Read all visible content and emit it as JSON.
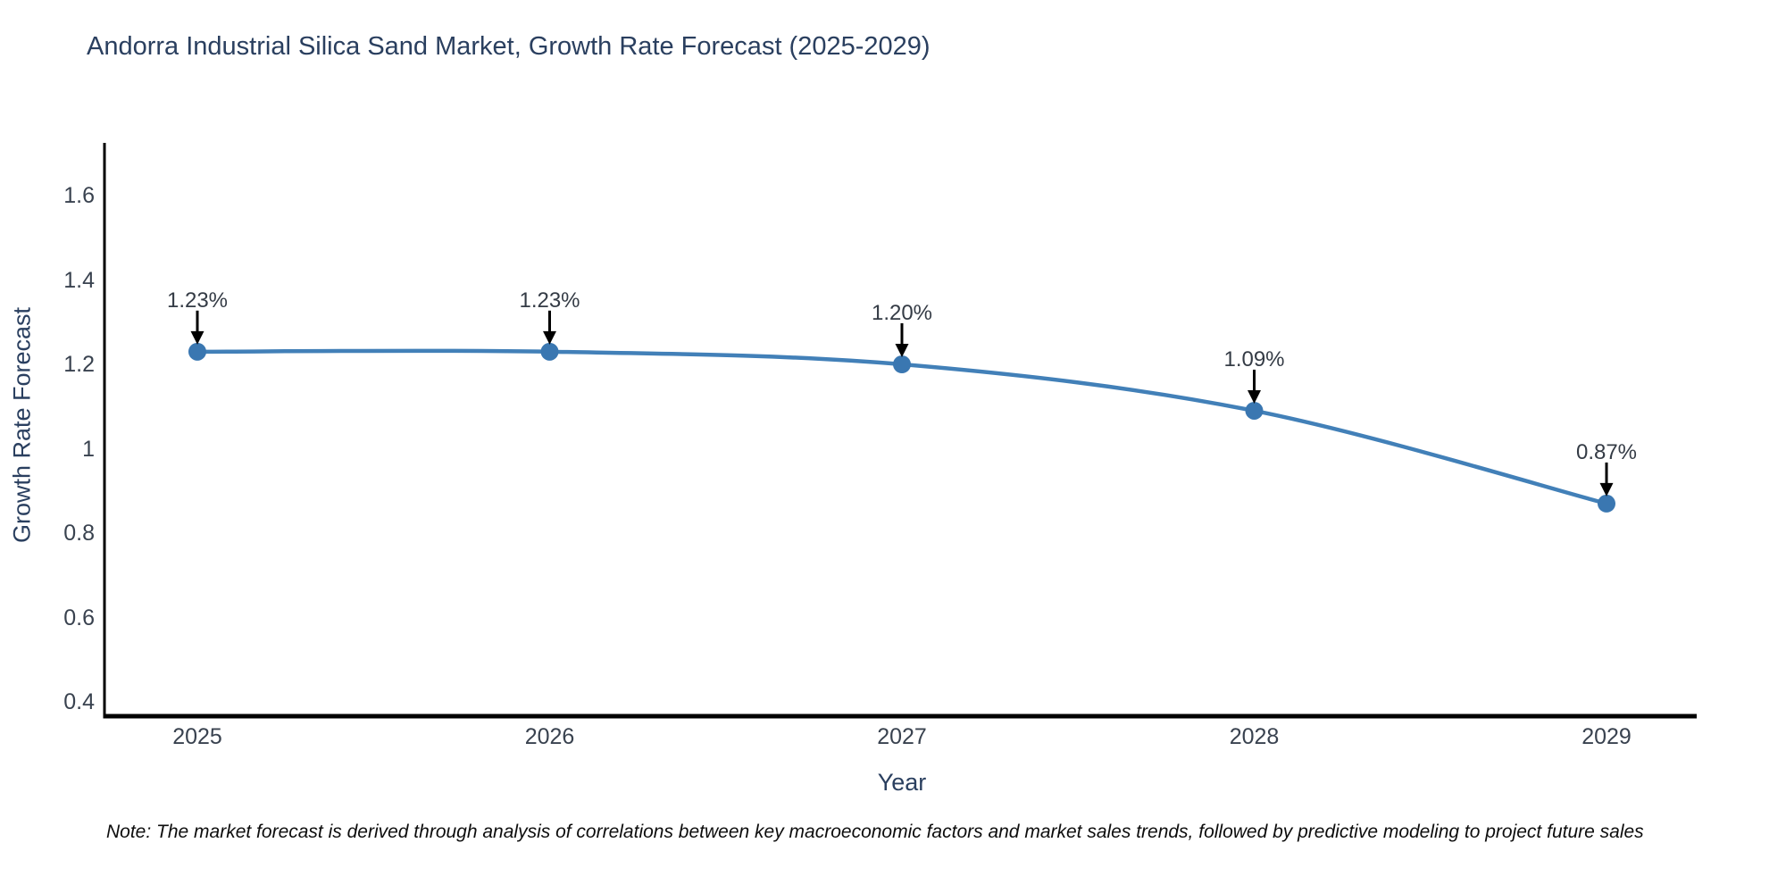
{
  "chart_data": {
    "type": "line",
    "title": "Andorra Industrial Silica Sand Market, Growth Rate Forecast (2025-2029)",
    "xlabel": "Year",
    "ylabel": "Growth Rate Forecast",
    "x": [
      2025,
      2026,
      2027,
      2028,
      2029
    ],
    "x_tick_labels": [
      "2025",
      "2026",
      "2027",
      "2028",
      "2029"
    ],
    "y": [
      1.23,
      1.23,
      1.2,
      1.09,
      0.87
    ],
    "point_labels": [
      "1.23%",
      "1.23%",
      "1.20%",
      "1.09%",
      "0.87%"
    ],
    "y_tick_values": [
      1.6,
      1.4,
      1.2,
      1,
      0.8,
      0.6,
      0.4
    ],
    "y_tick_labels": [
      "1.6",
      "1.4",
      "1.2",
      "1",
      "0.8",
      "0.6",
      "0.4"
    ],
    "ylim": [
      0.37,
      1.72
    ],
    "grid": false,
    "legend": false,
    "marker_style": "circle",
    "annotation_arrows": true,
    "note": "Note: The market forecast is derived through analysis of correlations between key macroeconomic factors and market sales trends, followed by predictive modeling to project future sales",
    "colors": {
      "line": "#4280b8",
      "marker": "#3a77b1",
      "axis": "#000000",
      "arrow": "#000000",
      "title": "#2a3f5f",
      "tick_label": "#39424f",
      "annotation": "#343b45",
      "background": "#ffffff"
    }
  }
}
